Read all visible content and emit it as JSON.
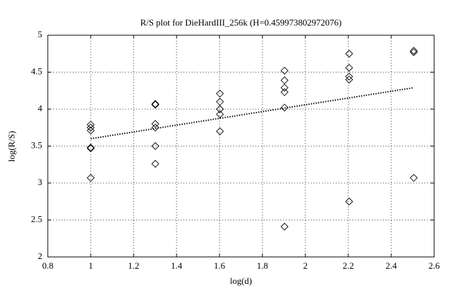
{
  "chart_data": {
    "type": "scatter",
    "title": "R/S plot for DieHardIII_256k (H=0.459973802972076)",
    "x_label": "log(d)",
    "y_label": "log(R/S)",
    "xlim": [
      0.8,
      2.6
    ],
    "xticks": [
      0.8,
      1,
      1.2,
      1.4,
      1.6,
      1.8,
      2,
      2.2,
      2.4,
      2.6
    ],
    "ylim": [
      2,
      5
    ],
    "yticks": [
      2,
      2.5,
      3,
      3.5,
      4,
      4.5,
      5
    ],
    "grid": true,
    "series": [
      {
        "marker": "diamond",
        "color": "#000000",
        "x": [
          1,
          1,
          1,
          1,
          1,
          1,
          1.301,
          1.301,
          1.301,
          1.301,
          1.301,
          1.301,
          1.602,
          1.602,
          1.602,
          1.602,
          1.602,
          1.903,
          1.903,
          1.903,
          1.903,
          1.903,
          1.903,
          2.204,
          2.204,
          2.204,
          2.204,
          2.204,
          2.505,
          2.505,
          2.505
        ],
        "values": [
          3.79,
          3.75,
          3.71,
          3.48,
          3.47,
          3.07,
          4.07,
          4.06,
          3.8,
          3.75,
          3.5,
          3.26,
          4.21,
          4.1,
          4.0,
          3.93,
          3.7,
          4.52,
          4.39,
          4.29,
          4.23,
          4.02,
          2.41,
          4.75,
          4.56,
          4.44,
          4.4,
          2.75,
          4.79,
          4.77,
          3.07
        ]
      },
      {
        "marker": "none",
        "line": "dotted",
        "color": "#000000",
        "x": [
          1,
          2.505
        ],
        "values": [
          3.6,
          4.29
        ]
      }
    ]
  }
}
